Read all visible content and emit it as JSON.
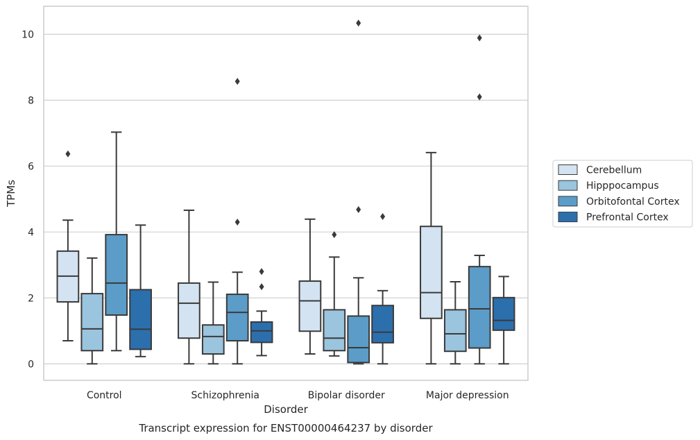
{
  "caption": "Transcript expression for ENST00000464237 by disorder",
  "chart_data": {
    "type": "boxplot",
    "xlabel": "Disorder",
    "ylabel": "TPMs",
    "ylim": [
      -0.5,
      10.85
    ],
    "yticks": [
      0,
      2,
      4,
      6,
      8,
      10
    ],
    "grid": "horizontal",
    "legend_position": "right",
    "categories": [
      "Control",
      "Schizophrenia",
      "Bipolar disorder",
      "Major depression"
    ],
    "series": [
      {
        "name": "Cerebellum",
        "color": "#d4e3f2",
        "boxes": [
          {
            "whislo": 0.7,
            "q1": 1.88,
            "med": 2.66,
            "q3": 3.42,
            "whishi": 4.36,
            "fliers": [
              6.37
            ]
          },
          {
            "whislo": 0.0,
            "q1": 0.78,
            "med": 1.84,
            "q3": 2.45,
            "whishi": 4.66,
            "fliers": []
          },
          {
            "whislo": 0.3,
            "q1": 0.99,
            "med": 1.91,
            "q3": 2.51,
            "whishi": 4.39,
            "fliers": []
          },
          {
            "whislo": 0.0,
            "q1": 1.38,
            "med": 2.16,
            "q3": 4.17,
            "whishi": 6.41,
            "fliers": []
          }
        ]
      },
      {
        "name": "Hipppocampus",
        "color": "#9bc4de",
        "boxes": [
          {
            "whislo": 0.0,
            "q1": 0.4,
            "med": 1.06,
            "q3": 2.13,
            "whishi": 3.21,
            "fliers": []
          },
          {
            "whislo": 0.0,
            "q1": 0.3,
            "med": 0.83,
            "q3": 1.18,
            "whishi": 2.48,
            "fliers": []
          },
          {
            "whislo": 0.24,
            "q1": 0.4,
            "med": 0.78,
            "q3": 1.64,
            "whishi": 3.24,
            "fliers": [
              3.92
            ]
          },
          {
            "whislo": 0.0,
            "q1": 0.38,
            "med": 0.91,
            "q3": 1.64,
            "whishi": 2.49,
            "fliers": []
          }
        ]
      },
      {
        "name": "Orbitofontal Cortex",
        "color": "#5b9cc8",
        "boxes": [
          {
            "whislo": 0.4,
            "q1": 1.48,
            "med": 2.45,
            "q3": 3.92,
            "whishi": 7.03,
            "fliers": []
          },
          {
            "whislo": 0.0,
            "q1": 0.7,
            "med": 1.56,
            "q3": 2.11,
            "whishi": 2.78,
            "fliers": [
              4.3,
              8.57
            ]
          },
          {
            "whislo": 0.0,
            "q1": 0.04,
            "med": 0.49,
            "q3": 1.45,
            "whishi": 2.61,
            "fliers": [
              4.68,
              10.34
            ]
          },
          {
            "whislo": 0.0,
            "q1": 0.48,
            "med": 1.67,
            "q3": 2.95,
            "whishi": 3.29,
            "fliers": [
              8.1,
              9.89
            ]
          }
        ]
      },
      {
        "name": "Prefrontal Cortex",
        "color": "#2c6fad",
        "boxes": [
          {
            "whislo": 0.22,
            "q1": 0.44,
            "med": 1.05,
            "q3": 2.25,
            "whishi": 4.21,
            "fliers": []
          },
          {
            "whislo": 0.25,
            "q1": 0.65,
            "med": 1.0,
            "q3": 1.27,
            "whishi": 1.6,
            "fliers": [
              2.34,
              2.8
            ]
          },
          {
            "whislo": 0.0,
            "q1": 0.64,
            "med": 0.96,
            "q3": 1.77,
            "whishi": 2.22,
            "fliers": [
              4.47
            ]
          },
          {
            "whislo": 0.0,
            "q1": 1.02,
            "med": 1.32,
            "q3": 2.01,
            "whishi": 2.65,
            "fliers": []
          }
        ]
      }
    ]
  }
}
